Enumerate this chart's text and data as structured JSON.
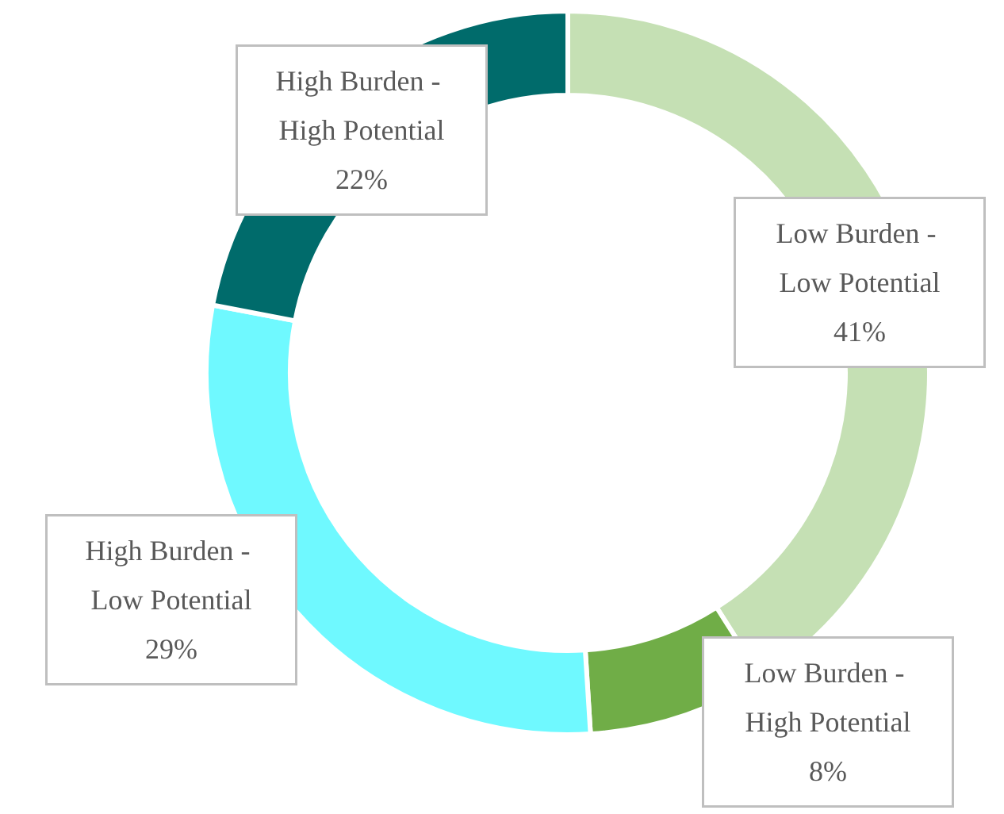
{
  "chart_data": {
    "type": "donut",
    "categories": [
      "Low Burden - Low Potential",
      "Low Burden - High Potential",
      "High Burden - Low Potential",
      "High Burden - High Potential"
    ],
    "values": [
      41,
      8,
      29,
      22
    ],
    "value_labels": [
      "41%",
      "8%",
      "29%",
      "22%"
    ],
    "colors": [
      "#c5e0b4",
      "#70ad47",
      "#6ff9ff",
      "#006b6b"
    ],
    "legend": false
  }
}
